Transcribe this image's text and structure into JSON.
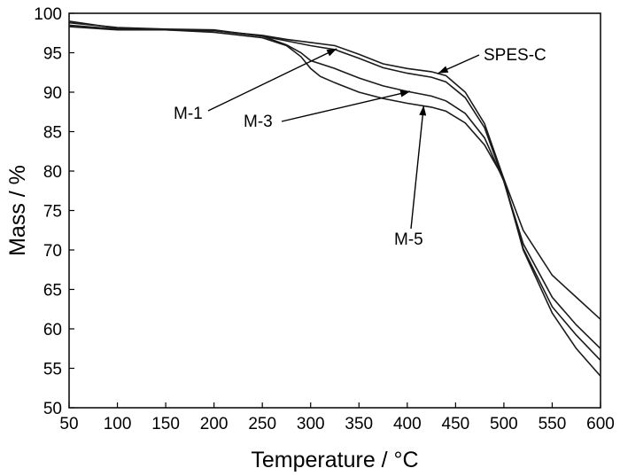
{
  "chart_data": {
    "type": "line",
    "xlabel": "Temperature / °C",
    "ylabel": "Mass / %",
    "xlim": [
      50,
      600
    ],
    "ylim": [
      50,
      100
    ],
    "xticks": [
      50,
      100,
      150,
      200,
      250,
      300,
      350,
      400,
      450,
      500,
      550,
      600
    ],
    "yticks": [
      50,
      55,
      60,
      65,
      70,
      75,
      80,
      85,
      90,
      95,
      100
    ],
    "grid": false,
    "series": [
      {
        "name": "SPES-C",
        "x": [
          50,
          100,
          150,
          200,
          250,
          275,
          300,
          325,
          350,
          375,
          400,
          425,
          440,
          460,
          480,
          500,
          520,
          550,
          575,
          600
        ],
        "y": [
          98.3,
          97.9,
          97.9,
          97.8,
          97.2,
          96.7,
          96.3,
          95.9,
          94.8,
          93.6,
          93.0,
          92.6,
          92.1,
          90.0,
          86.0,
          79.0,
          70.0,
          62.0,
          57.5,
          54.0
        ]
      },
      {
        "name": "M-1",
        "x": [
          50,
          100,
          150,
          200,
          250,
          275,
          300,
          325,
          350,
          375,
          400,
          425,
          440,
          460,
          480,
          500,
          520,
          550,
          575,
          600
        ],
        "y": [
          98.5,
          98.0,
          97.9,
          97.8,
          97.1,
          96.5,
          95.9,
          95.4,
          94.3,
          93.1,
          92.4,
          91.9,
          91.3,
          89.3,
          85.5,
          78.7,
          70.2,
          62.8,
          59.2,
          56.0
        ]
      },
      {
        "name": "M-3",
        "x": [
          50,
          100,
          150,
          200,
          250,
          275,
          290,
          300,
          325,
          350,
          375,
          400,
          425,
          440,
          460,
          480,
          500,
          520,
          550,
          575,
          600
        ],
        "y": [
          98.8,
          98.2,
          98.0,
          97.9,
          97.1,
          96.0,
          95.0,
          94.0,
          93.0,
          91.8,
          90.8,
          90.1,
          89.5,
          88.9,
          87.3,
          84.2,
          78.7,
          70.8,
          64.0,
          60.5,
          57.5
        ]
      },
      {
        "name": "M-5",
        "x": [
          50,
          100,
          150,
          200,
          250,
          275,
          290,
          300,
          310,
          325,
          350,
          375,
          400,
          425,
          440,
          460,
          480,
          500,
          520,
          550,
          575,
          600
        ],
        "y": [
          99.0,
          98.1,
          97.9,
          97.6,
          96.9,
          95.9,
          94.5,
          93.0,
          92.0,
          91.2,
          90.0,
          89.2,
          88.6,
          88.1,
          87.6,
          86.1,
          83.3,
          79.0,
          72.5,
          66.8,
          64.0,
          61.2
        ]
      }
    ],
    "annotations": [
      {
        "text": "SPES-C",
        "target": [
          432,
          92.4
        ]
      },
      {
        "text": "M-1",
        "target": [
          327,
          95.5
        ]
      },
      {
        "text": "M-3",
        "target": [
          403,
          90.1
        ]
      },
      {
        "text": "M-5",
        "target": [
          417,
          88.3
        ]
      }
    ]
  }
}
